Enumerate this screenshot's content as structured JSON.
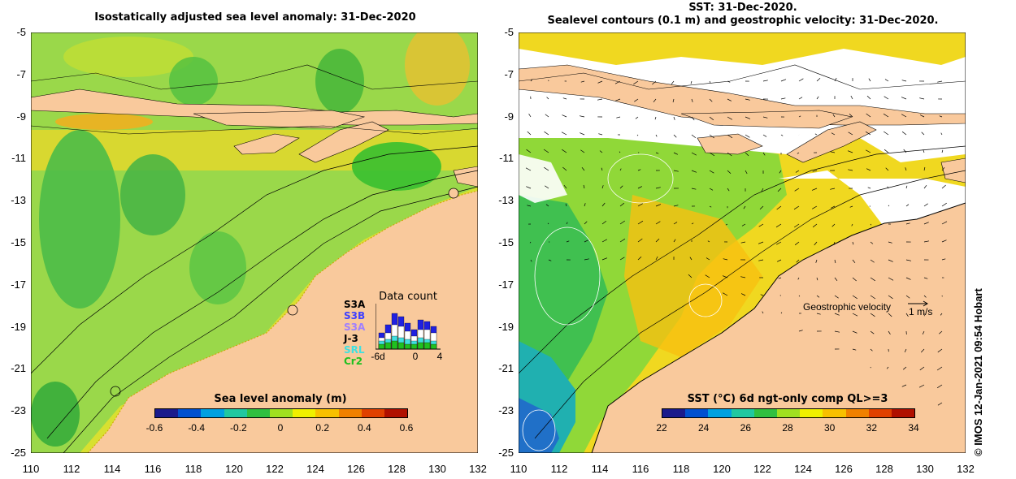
{
  "left_panel": {
    "title": "Isostatically adjusted sea level anomaly: 31-Dec-2020",
    "y_ticks": [
      "-5",
      "-7",
      "-9",
      "-11",
      "-13",
      "-15",
      "-17",
      "-19",
      "-21",
      "-23",
      "-25"
    ],
    "x_ticks": [
      "110",
      "112",
      "114",
      "116",
      "118",
      "120",
      "122",
      "124",
      "126",
      "128",
      "130",
      "132"
    ],
    "colorbar": {
      "title": "Sea level anomaly (m)",
      "ticks": [
        "-0.6",
        "-0.4",
        "-0.2",
        "0",
        "0.2",
        "0.4",
        "0.6"
      ],
      "colors": [
        "#1a1a8c",
        "#0050d0",
        "#00a0e0",
        "#20c8a0",
        "#30c040",
        "#a0e020",
        "#f0f000",
        "#f8c000",
        "#f08000",
        "#e04000",
        "#b01000"
      ]
    },
    "data_count": {
      "title": "Data count",
      "satellites": [
        "S3A",
        "S3B",
        "S3A",
        "J-3",
        "SRL",
        "Cr2"
      ],
      "sat_colors": [
        "#000000",
        "#4040ff",
        "#a080ff",
        "#000000",
        "#40e0e0",
        "#20c020"
      ],
      "x_ticks": [
        "-6d",
        "0",
        "4"
      ]
    }
  },
  "right_panel": {
    "title_line1": "SST: 31-Dec-2020.",
    "title_line2": "Sealevel contours (0.1 m) and geostrophic velocity: 31-Dec-2020.",
    "y_ticks": [
      "-5",
      "-7",
      "-9",
      "-11",
      "-13",
      "-15",
      "-17",
      "-19",
      "-21",
      "-23",
      "-25"
    ],
    "x_ticks": [
      "110",
      "112",
      "114",
      "116",
      "118",
      "120",
      "122",
      "124",
      "126",
      "128",
      "130",
      "132"
    ],
    "velocity_label": "Geostrophic velocity",
    "velocity_scale": "1 m/s",
    "colorbar": {
      "title": "SST (°C) 6d ngt-only comp QL>=3",
      "ticks": [
        "22",
        "24",
        "26",
        "28",
        "30",
        "32",
        "34"
      ],
      "colors": [
        "#1a1a8c",
        "#0050d0",
        "#00a0e0",
        "#20c8a0",
        "#30c040",
        "#a0e020",
        "#f0f000",
        "#f8c000",
        "#f08000",
        "#e04000",
        "#b01000"
      ]
    }
  },
  "credit": "© IMOS 12-Jan-2021 09:54 Hobart",
  "colors": {
    "land": "#f9c99c",
    "contour": "#000000",
    "white_contour": "#ffffff"
  }
}
